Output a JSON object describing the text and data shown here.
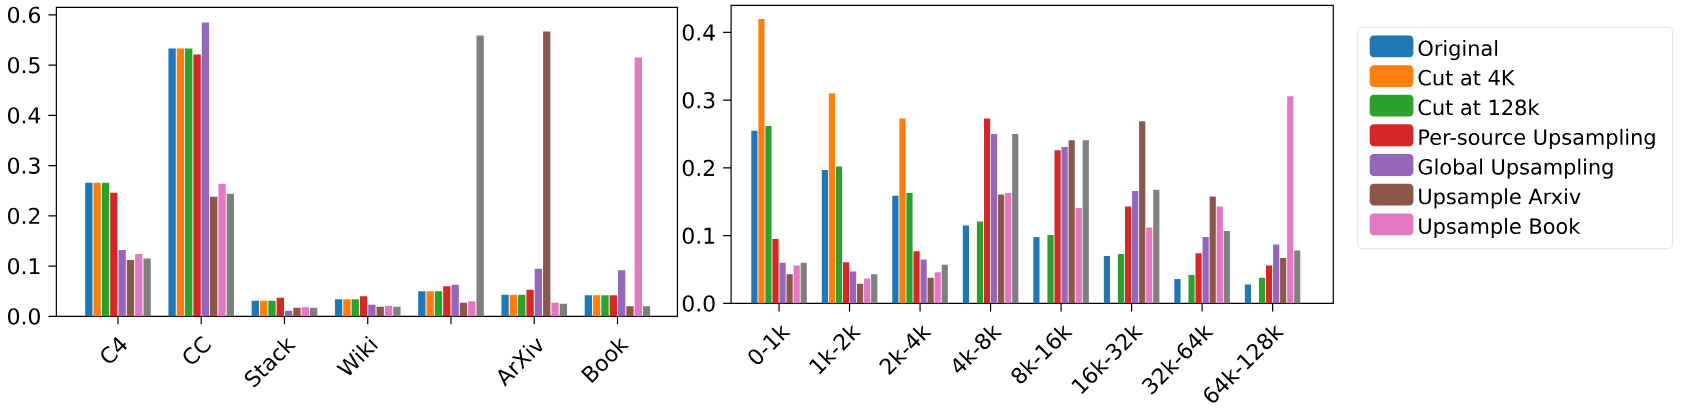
{
  "chart_data": [
    {
      "type": "bar",
      "categories": [
        "C4",
        "CC",
        "Stack",
        "Wiki",
        null,
        "ArXiv",
        "Book"
      ],
      "ylim": [
        0,
        0.615
      ],
      "yticks": [
        {
          "value": 0,
          "label": "0.0"
        },
        0.1,
        0.2,
        0.3,
        0.4,
        0.5,
        0.6
      ],
      "series": [
        {
          "color": "#1f77b4",
          "values": [
            0.266,
            0.533,
            0.031,
            0.034,
            0.05,
            0.043,
            0.042
          ]
        },
        {
          "color": "#ff7f0e",
          "values": [
            0.266,
            0.533,
            0.031,
            0.034,
            0.05,
            0.043,
            0.042
          ]
        },
        {
          "color": "#2ca02c",
          "values": [
            0.266,
            0.533,
            0.031,
            0.034,
            0.05,
            0.043,
            0.042
          ]
        },
        {
          "color": "#d62728",
          "values": [
            0.246,
            0.521,
            0.037,
            0.04,
            0.06,
            0.053,
            0.042
          ]
        },
        {
          "color": "#9467bd",
          "values": [
            0.132,
            0.585,
            0.011,
            0.023,
            0.063,
            0.095,
            0.092
          ]
        },
        {
          "color": "#8c564b",
          "values": [
            0.112,
            0.238,
            0.017,
            0.019,
            0.027,
            0.567,
            0.02
          ]
        },
        {
          "color": "#e377c2",
          "values": [
            0.124,
            0.264,
            0.018,
            0.021,
            0.03,
            0.027,
            0.515
          ]
        },
        {
          "color": "#7f7f7f",
          "values": [
            0.115,
            0.244,
            0.017,
            0.019,
            0.559,
            0.025,
            0.02
          ]
        }
      ]
    },
    {
      "type": "bar",
      "categories": [
        "0-1k",
        "1k-2k",
        "2k-4k",
        "4k-8k",
        "8k-16k",
        "16k-32k",
        "32k-64k",
        "64k-128k"
      ],
      "ylim": [
        0,
        0.44
      ],
      "yticks": [
        {
          "value": 0,
          "label": "0.0"
        },
        0.1,
        0.2,
        0.3,
        0.4
      ],
      "legend": "right",
      "series": [
        {
          "name": "Original",
          "color": "#1f77b4",
          "values": [
            0.255,
            0.197,
            0.159,
            0.115,
            0.098,
            0.07,
            0.036,
            0.028
          ]
        },
        {
          "name": "Cut at 4K",
          "color": "#ff7f0e",
          "values": [
            0.42,
            0.31,
            0.273,
            0,
            0,
            0,
            0,
            0
          ]
        },
        {
          "name": "Cut at 128k",
          "color": "#2ca02c",
          "values": [
            0.262,
            0.202,
            0.163,
            0.121,
            0.101,
            0.073,
            0.042,
            0.038
          ]
        },
        {
          "name": "Per-source Upsampling",
          "color": "#d62728",
          "values": [
            0.095,
            0.061,
            0.077,
            0.273,
            0.226,
            0.143,
            0.074,
            0.056
          ]
        },
        {
          "name": "Global Upsampling",
          "color": "#9467bd",
          "values": [
            0.06,
            0.047,
            0.065,
            0.25,
            0.231,
            0.166,
            0.098,
            0.087
          ]
        },
        {
          "name": "Upsample Arxiv",
          "color": "#8c564b",
          "values": [
            0.043,
            0.029,
            0.038,
            0.161,
            0.241,
            0.269,
            0.158,
            0.067
          ]
        },
        {
          "name": "Upsample Book",
          "color": "#e377c2",
          "values": [
            0.056,
            0.037,
            0.046,
            0.163,
            0.141,
            0.112,
            0.143,
            0.306
          ]
        },
        {
          "color": "#7f7f7f",
          "values": [
            0.06,
            0.043,
            0.057,
            0.25,
            0.241,
            0.168,
            0.107,
            0.078
          ]
        }
      ]
    }
  ]
}
